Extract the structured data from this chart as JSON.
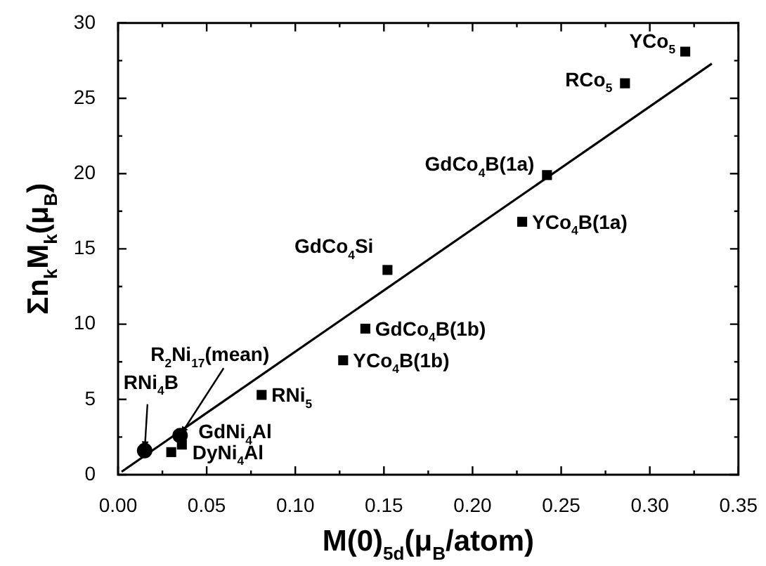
{
  "chart_data": {
    "type": "scatter",
    "xlabel": "M(0)$_{5d}$(μ$_{B}$/atom)",
    "ylabel": "Σn$_{k}$M$_{k}$(μ$_{B}$)",
    "xlim": [
      0,
      0.35
    ],
    "ylim": [
      0,
      30
    ],
    "xticks": [
      {
        "value": 0,
        "label": "0.00"
      },
      {
        "value": 0.025,
        "label": null
      },
      {
        "value": 0.05,
        "label": "0.05"
      },
      {
        "value": 0.075,
        "label": null
      },
      {
        "value": 0.1,
        "label": "0.10"
      },
      {
        "value": 0.125,
        "label": null
      },
      {
        "value": 0.15,
        "label": "0.15"
      },
      {
        "value": 0.175,
        "label": null
      },
      {
        "value": 0.2,
        "label": "0.20"
      },
      {
        "value": 0.225,
        "label": null
      },
      {
        "value": 0.25,
        "label": "0.25"
      },
      {
        "value": 0.275,
        "label": null
      },
      {
        "value": 0.3,
        "label": "0.30"
      },
      {
        "value": 0.325,
        "label": null
      },
      {
        "value": 0.35,
        "label": "0.35"
      }
    ],
    "yticks": [
      0,
      {
        "value": 2.5,
        "label": null
      },
      5,
      {
        "value": 7.5,
        "label": null
      },
      10,
      {
        "value": 12.5,
        "label": null
      },
      15,
      {
        "value": 17.5,
        "label": null
      },
      20,
      {
        "value": 22.5,
        "label": null
      },
      25,
      {
        "value": 27.5,
        "label": null
      },
      30
    ],
    "series": [
      {
        "marker": "square",
        "color": "#000000",
        "x": [
          0.32,
          0.286,
          0.242,
          0.228,
          0.152,
          0.1395,
          0.127,
          0.081,
          0.036,
          0.03
        ],
        "values": [
          28.1,
          26.0,
          19.9,
          16.8,
          13.6,
          9.7,
          7.6,
          5.3,
          2.0,
          1.5
        ]
      },
      {
        "marker": "circle",
        "color": "#000000",
        "x": [
          0.035,
          0.015
        ],
        "values": [
          2.6,
          1.6
        ]
      },
      {
        "type": "line",
        "marker": "none",
        "line_style": "solid",
        "color": "#000000",
        "x": [
          0.002,
          0.335
        ],
        "values": [
          0.2,
          27.3
        ]
      }
    ],
    "annotations": [
      {
        "text": "YCo$_{5}$",
        "x": 0.32,
        "y": 28.1
      },
      {
        "text": "RCo$_{5}$",
        "x": 0.286,
        "y": 26.0
      },
      {
        "text": "GdCo$_{4}$B(1a)",
        "x": 0.242,
        "y": 19.9
      },
      {
        "text": "YCo$_{4}$B(1a)",
        "x": 0.228,
        "y": 16.8
      },
      {
        "text": "GdCo$_{4}$Si",
        "x": 0.152,
        "y": 13.6
      },
      {
        "text": "GdCo$_{4}$B(1b)",
        "x": 0.1395,
        "y": 9.7
      },
      {
        "text": "YCo$_{4}$B(1b)",
        "x": 0.127,
        "y": 7.6
      },
      {
        "text": "RNi$_{5}$",
        "x": 0.081,
        "y": 5.3
      },
      {
        "text": "GdNi$_{4}$Al",
        "x": 0.035,
        "y": 2.6
      },
      {
        "text": "DyNi$_{4}$Al",
        "x": 0.03,
        "y": 1.5
      },
      {
        "text": "R$_{2}$Ni$_{17}$(mean)",
        "x": 0.035,
        "y": 2.6
      },
      {
        "text": "RNi$_{4}$B",
        "x": 0.015,
        "y": 1.6
      }
    ]
  }
}
